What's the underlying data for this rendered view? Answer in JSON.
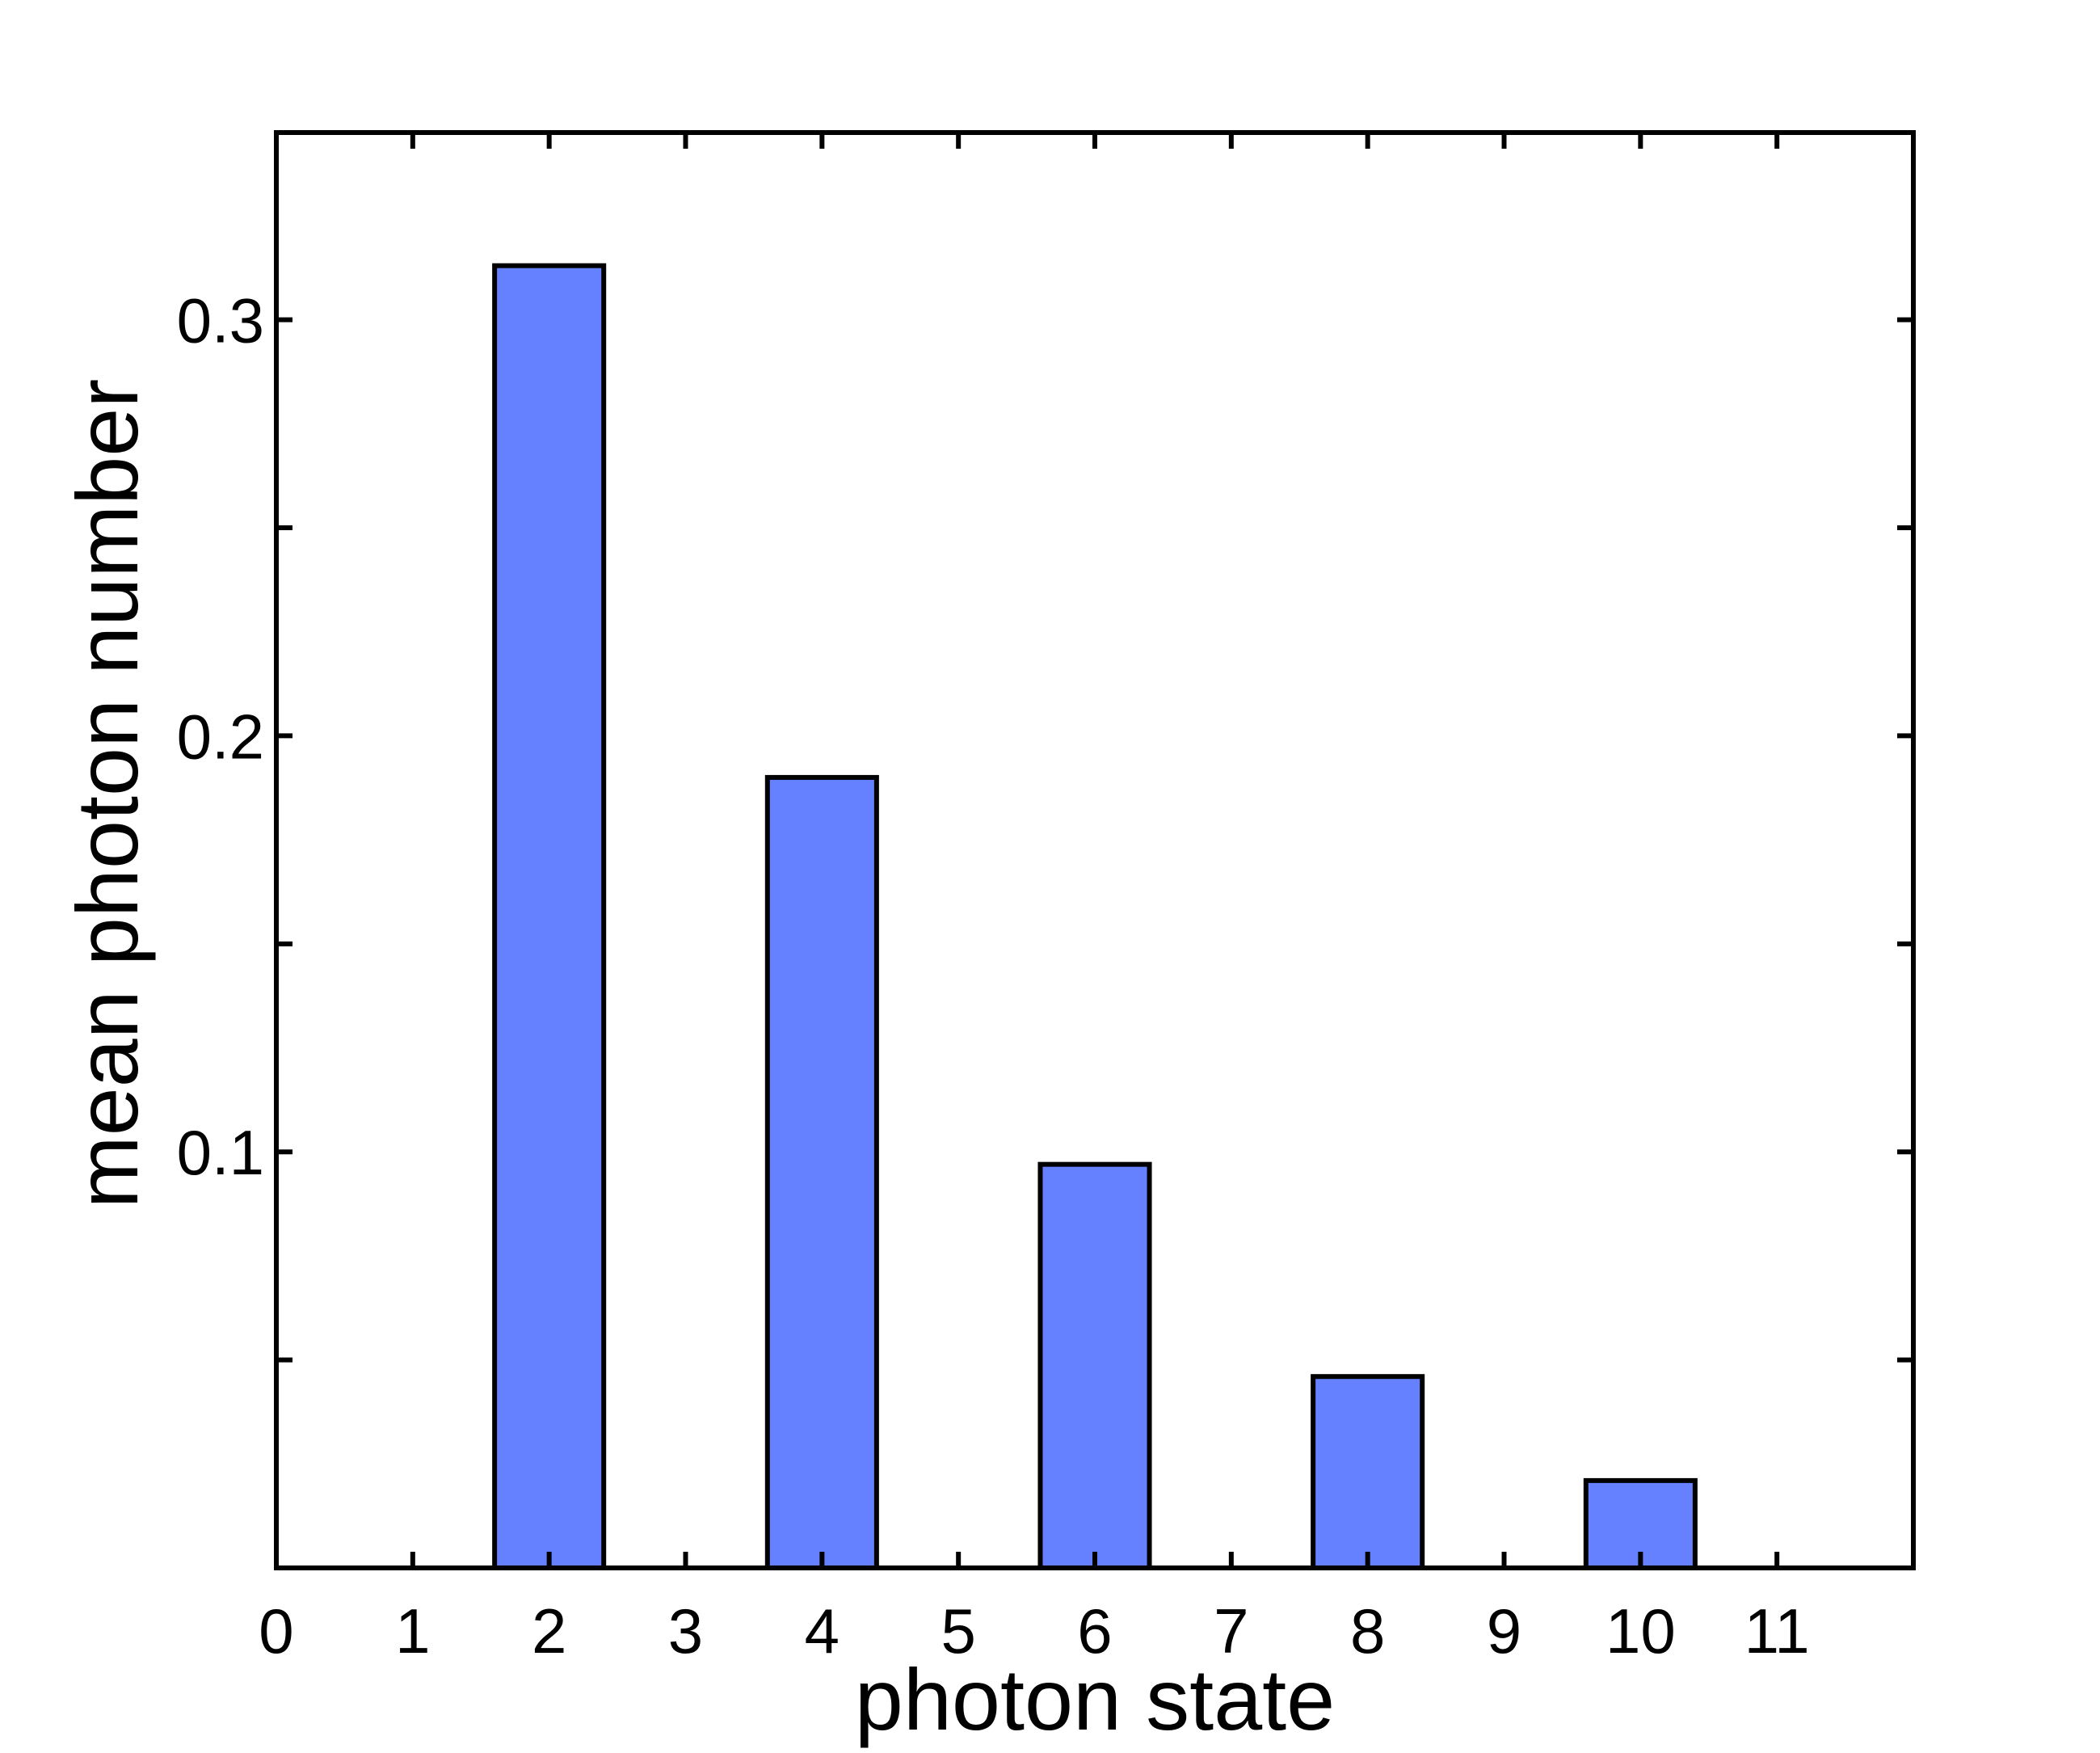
{
  "chart_data": {
    "type": "bar",
    "xlabel": "photon state",
    "ylabel": "mean photon number",
    "x": [
      2,
      4,
      6,
      8,
      10
    ],
    "values": [
      0.313,
      0.19,
      0.097,
      0.046,
      0.021
    ],
    "xlim": [
      0,
      12
    ],
    "ylim": [
      0,
      0.345
    ],
    "xticks": [
      0,
      1,
      2,
      3,
      4,
      5,
      6,
      7,
      8,
      9,
      10,
      11
    ],
    "yticks_labeled": [
      0.1,
      0.2,
      0.3
    ],
    "yticks_minor": [
      0.05,
      0.15,
      0.25
    ],
    "ytick_labels": [
      "0.1",
      "0.2",
      "0.3"
    ],
    "xtick_labels": [
      "0",
      "1",
      "2",
      "3",
      "4",
      "5",
      "6",
      "7",
      "8",
      "9",
      "10",
      "11"
    ],
    "bar_color": "#6681ff",
    "edge_color": "#000000",
    "grid": false,
    "legend": "none"
  }
}
